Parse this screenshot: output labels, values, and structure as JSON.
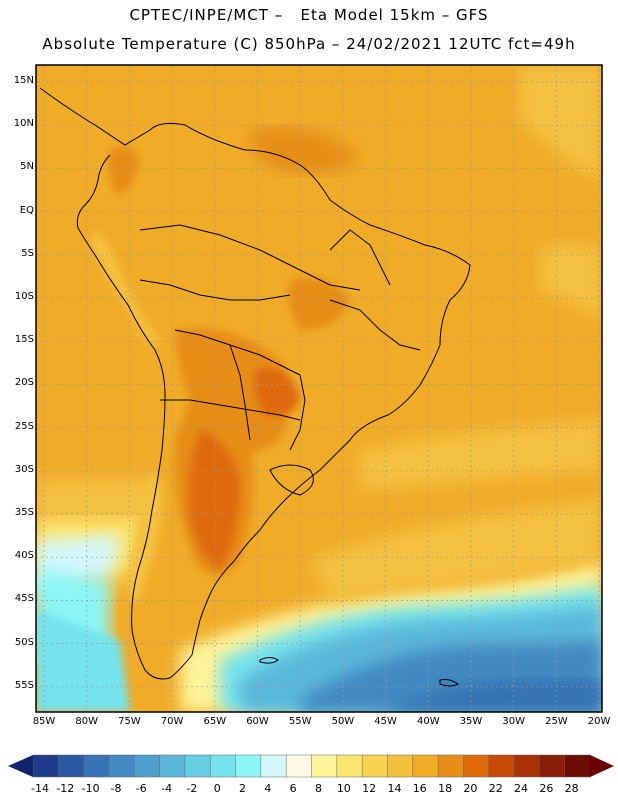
{
  "header": {
    "line1": "CPTEC/INPE/MCT –   Eta Model 15km – GFS",
    "line2": "Absolute Temperature (C) 850hPa – 24/02/2021 12UTC fct=49h"
  },
  "map": {
    "lat_labels": [
      "15N",
      "10N",
      "5N",
      "EQ",
      "5S",
      "10S",
      "15S",
      "20S",
      "25S",
      "30S",
      "35S",
      "40S",
      "45S",
      "50S",
      "55S"
    ],
    "lon_labels": [
      "85W",
      "80W",
      "75W",
      "70W",
      "65W",
      "60W",
      "55W",
      "50W",
      "45W",
      "40W",
      "35W",
      "30W",
      "25W",
      "20W"
    ]
  },
  "colorbar": {
    "labels": [
      "-14",
      "-12",
      "-10",
      "-8",
      "-6",
      "-4",
      "-2",
      "0",
      "2",
      "4",
      "6",
      "8",
      "10",
      "12",
      "14",
      "16",
      "18",
      "20",
      "22",
      "24",
      "26",
      "28"
    ],
    "colors": [
      "#1d3c8c",
      "#2a58a3",
      "#3672b4",
      "#4389c2",
      "#4fa0cf",
      "#5ab7da",
      "#66cde3",
      "#75e3ec",
      "#8cf6f6",
      "#d4f7fb",
      "#fff8e2",
      "#fff49a",
      "#fbe670",
      "#f8d352",
      "#f4c13f",
      "#f0ac27",
      "#e78d18",
      "#df6b0c",
      "#c64b06",
      "#a93204",
      "#8a1d07",
      "#6b0c05"
    ],
    "arrow_low_color": "#12246f",
    "arrow_high_color": "#6b0000"
  }
}
